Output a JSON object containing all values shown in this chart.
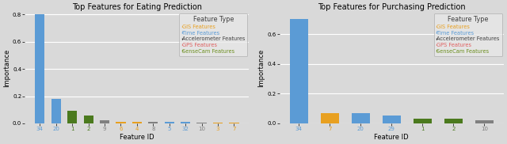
{
  "eating": {
    "title": "Top Features for Eating Prediction",
    "feature_ids": [
      "34",
      "20",
      "1",
      "2",
      "9",
      "6",
      "4",
      "8",
      "5",
      "32",
      "10",
      "3",
      "7"
    ],
    "values": [
      0.8,
      0.18,
      0.09,
      0.06,
      0.02,
      0.012,
      0.01,
      0.01,
      0.01,
      0.01,
      0.006,
      0.005,
      0.004
    ],
    "bar_colors": [
      "#5B9BD5",
      "#5B9BD5",
      "#4B7A1E",
      "#4B7A1E",
      "#808080",
      "#E8A020",
      "#E8A020",
      "#808080",
      "#5B9BD5",
      "#5B9BD5",
      "#808080",
      "#E8A020",
      "#E8A020"
    ],
    "xlabel": "Feature ID",
    "ylabel": "Importance",
    "ylim": [
      0,
      0.82
    ],
    "yticks": [
      0.0,
      0.2,
      0.4,
      0.6,
      0.8
    ]
  },
  "purchasing": {
    "title": "Top Features for Purchasing Prediction",
    "feature_ids": [
      "34",
      "7",
      "20",
      "29",
      "1",
      "2",
      "10"
    ],
    "values": [
      0.7,
      0.07,
      0.07,
      0.05,
      0.032,
      0.03,
      0.02
    ],
    "bar_colors": [
      "#5B9BD5",
      "#E8A020",
      "#5B9BD5",
      "#5B9BD5",
      "#4B7A1E",
      "#4B7A1E",
      "#808080"
    ],
    "xlabel": "Feature ID",
    "ylabel": "Importance",
    "ylim": [
      0,
      0.75
    ],
    "yticks": [
      0.0,
      0.2,
      0.4,
      0.6
    ]
  },
  "legend": {
    "title": "Feature Type",
    "entries": [
      "GIS Features",
      "Time Features",
      "Accelerometer Features",
      "GPS Features",
      "SenseCam Features"
    ],
    "colors": [
      "#E8A020",
      "#5B9BD5",
      "#404040",
      "#E06060",
      "#6B8E1E"
    ]
  },
  "bg_color": "#D9D9D9",
  "grid_color": "#FFFFFF",
  "fig_width": 6.4,
  "fig_height": 1.82,
  "dpi": 100
}
